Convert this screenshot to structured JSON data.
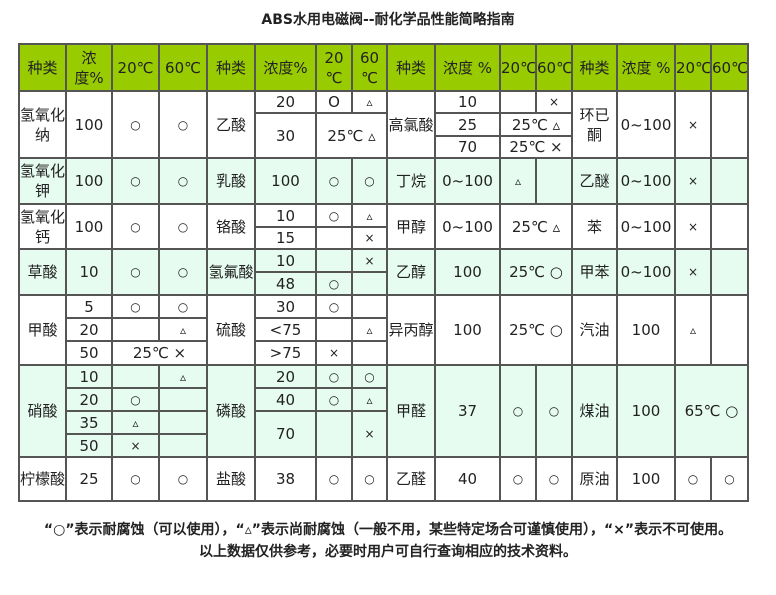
{
  "title": "ABS水用电磁阀--耐化学品性能简略指南",
  "colors": {
    "header_bg": "#99cc00",
    "alt_row_bg": "#e6fcf1",
    "border": "#555555"
  },
  "table": {
    "header": [
      "种类",
      "浓度%",
      "20℃",
      "60℃",
      "种类",
      "浓度%",
      "20 ℃",
      "60 ℃",
      "种类",
      "浓度 %",
      "20℃",
      "60℃",
      "种类",
      "浓度 %",
      "20℃",
      "60℃"
    ],
    "rows": [
      {
        "bg": "w",
        "cells": [
          {
            "t": "氢氧化纳",
            "rs": 3
          },
          {
            "t": "100",
            "rs": 3
          },
          {
            "t": "○",
            "rs": 3
          },
          {
            "t": "○",
            "rs": 3
          },
          {
            "t": "乙酸",
            "rs": 3
          },
          {
            "t": "20"
          },
          {
            "t": "O"
          },
          {
            "t": "▵"
          },
          {
            "t": "高氯酸",
            "rs": 3
          },
          {
            "t": "10"
          },
          {
            "t": ""
          },
          {
            "t": "×"
          },
          {
            "t": "环已酮",
            "rs": 3
          },
          {
            "t": "0~100",
            "rs": 3
          },
          {
            "t": "×",
            "rs": 3
          },
          {
            "t": "",
            "rs": 3
          }
        ]
      },
      {
        "bg": "w",
        "cells": [
          {
            "t": "30",
            "rs": 2
          },
          {
            "t": "25℃ ▵",
            "rs": 2,
            "cs": 2
          },
          {
            "t": "25"
          },
          {
            "t": "25℃ ▵",
            "cs": 2
          }
        ]
      },
      {
        "bg": "w",
        "cells": [
          {
            "t": "70"
          },
          {
            "t": "25℃ ×",
            "cs": 2
          }
        ]
      },
      {
        "bg": "g",
        "cells": [
          {
            "t": "氢氧化钾"
          },
          {
            "t": "100"
          },
          {
            "t": "○"
          },
          {
            "t": "○"
          },
          {
            "t": "乳酸"
          },
          {
            "t": "100"
          },
          {
            "t": "○"
          },
          {
            "t": "○"
          },
          {
            "t": "丁烷"
          },
          {
            "t": "0~100"
          },
          {
            "t": "▵"
          },
          {
            "t": ""
          },
          {
            "t": "乙醚"
          },
          {
            "t": "0~100"
          },
          {
            "t": "×"
          },
          {
            "t": ""
          }
        ]
      },
      {
        "bg": "w",
        "cells": [
          {
            "t": "氢氧化钙",
            "rs": 2
          },
          {
            "t": "100",
            "rs": 2
          },
          {
            "t": "○",
            "rs": 2
          },
          {
            "t": "○",
            "rs": 2
          },
          {
            "t": "铬酸",
            "rs": 2
          },
          {
            "t": "10"
          },
          {
            "t": "○"
          },
          {
            "t": "▵"
          },
          {
            "t": "甲醇",
            "rs": 2
          },
          {
            "t": "0~100",
            "rs": 2
          },
          {
            "t": "25℃ ▵",
            "rs": 2,
            "cs": 2
          },
          {
            "t": "苯",
            "rs": 2
          },
          {
            "t": "0~100",
            "rs": 2
          },
          {
            "t": "×",
            "rs": 2
          },
          {
            "t": "",
            "rs": 2
          }
        ]
      },
      {
        "bg": "w",
        "cells": [
          {
            "t": "15"
          },
          {
            "t": ""
          },
          {
            "t": "×"
          }
        ]
      },
      {
        "bg": "g",
        "cells": [
          {
            "t": "草酸",
            "rs": 2
          },
          {
            "t": "10",
            "rs": 2
          },
          {
            "t": "○",
            "rs": 2
          },
          {
            "t": "○",
            "rs": 2
          },
          {
            "t": "氢氟酸",
            "rs": 2
          },
          {
            "t": "10"
          },
          {
            "t": ""
          },
          {
            "t": "×"
          },
          {
            "t": "乙醇",
            "rs": 2
          },
          {
            "t": "100",
            "rs": 2
          },
          {
            "t": "25℃ ○",
            "rs": 2,
            "cs": 2
          },
          {
            "t": "甲苯",
            "rs": 2
          },
          {
            "t": "0~100",
            "rs": 2
          },
          {
            "t": "×",
            "rs": 2
          },
          {
            "t": "",
            "rs": 2
          }
        ]
      },
      {
        "bg": "g",
        "cells": [
          {
            "t": "48"
          },
          {
            "t": "○"
          },
          {
            "t": ""
          }
        ]
      },
      {
        "bg": "w",
        "cells": [
          {
            "t": "甲酸",
            "rs": 3
          },
          {
            "t": "5"
          },
          {
            "t": "○"
          },
          {
            "t": "○"
          },
          {
            "t": "硫酸",
            "rs": 3
          },
          {
            "t": "30"
          },
          {
            "t": "○"
          },
          {
            "t": ""
          },
          {
            "t": "异丙醇",
            "rs": 3
          },
          {
            "t": "100",
            "rs": 3
          },
          {
            "t": "25℃ ○",
            "rs": 3,
            "cs": 2
          },
          {
            "t": "汽油",
            "rs": 3
          },
          {
            "t": "100",
            "rs": 3
          },
          {
            "t": "▵",
            "rs": 3
          },
          {
            "t": "",
            "rs": 3
          }
        ]
      },
      {
        "bg": "w",
        "cells": [
          {
            "t": "20"
          },
          {
            "t": ""
          },
          {
            "t": "▵"
          },
          {
            "t": "<75"
          },
          {
            "t": ""
          },
          {
            "t": "▵"
          }
        ]
      },
      {
        "bg": "w",
        "cells": [
          {
            "t": "50"
          },
          {
            "t": "25℃ ×",
            "cs": 2
          },
          {
            "t": ">75"
          },
          {
            "t": "×"
          },
          {
            "t": ""
          }
        ]
      },
      {
        "bg": "g",
        "cells": [
          {
            "t": "硝酸",
            "rs": 4
          },
          {
            "t": "10"
          },
          {
            "t": ""
          },
          {
            "t": "▵"
          },
          {
            "t": "磷酸",
            "rs": 4
          },
          {
            "t": "20"
          },
          {
            "t": "○"
          },
          {
            "t": "○"
          },
          {
            "t": "甲醛",
            "rs": 4
          },
          {
            "t": "37",
            "rs": 4
          },
          {
            "t": "○",
            "rs": 4
          },
          {
            "t": "○",
            "rs": 4
          },
          {
            "t": "煤油",
            "rs": 4
          },
          {
            "t": "100",
            "rs": 4
          },
          {
            "t": "65℃ ○",
            "rs": 4,
            "cs": 2
          }
        ]
      },
      {
        "bg": "g",
        "cells": [
          {
            "t": "20"
          },
          {
            "t": "○"
          },
          {
            "t": ""
          },
          {
            "t": "40"
          },
          {
            "t": "○"
          },
          {
            "t": "▵"
          }
        ]
      },
      {
        "bg": "g",
        "cells": [
          {
            "t": "35"
          },
          {
            "t": "▵"
          },
          {
            "t": ""
          },
          {
            "t": "70",
            "rs": 2
          },
          {
            "t": "",
            "rs": 2
          },
          {
            "t": "×",
            "rs": 2
          }
        ]
      },
      {
        "bg": "g",
        "cells": [
          {
            "t": "50"
          },
          {
            "t": "×"
          },
          {
            "t": ""
          }
        ]
      },
      {
        "bg": "w",
        "cells": [
          {
            "t": "柠檬酸"
          },
          {
            "t": "25"
          },
          {
            "t": "○"
          },
          {
            "t": "○"
          },
          {
            "t": "盐酸"
          },
          {
            "t": "38"
          },
          {
            "t": "○"
          },
          {
            "t": "○"
          },
          {
            "t": "乙醛"
          },
          {
            "t": "40"
          },
          {
            "t": "○"
          },
          {
            "t": "○"
          },
          {
            "t": "原油"
          },
          {
            "t": "100"
          },
          {
            "t": "○"
          },
          {
            "t": "○"
          }
        ]
      }
    ]
  },
  "footer": {
    "legend": "“○”表示耐腐蚀（可以使用），“▵”表示尚耐腐蚀（一般不用，某些特定场合可谨慎使用），“×”表示不可使用。",
    "disclaimer": "以上数据仅供参考，必要时用户可自行查询相应的技术资料。"
  }
}
